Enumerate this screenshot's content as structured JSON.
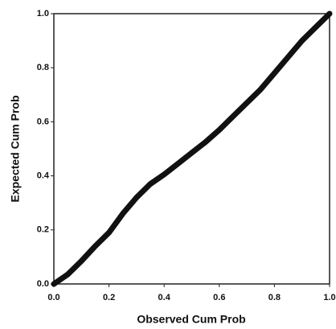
{
  "chart_data": {
    "type": "line",
    "xlabel": "Observed Cum Prob",
    "ylabel": "Expected Cum Prob",
    "x": [
      0,
      0.05,
      0.1,
      0.15,
      0.2,
      0.25,
      0.3,
      0.35,
      0.4,
      0.45,
      0.5,
      0.55,
      0.6,
      0.65,
      0.7,
      0.75,
      0.8,
      0.85,
      0.9,
      0.95,
      1
    ],
    "values": [
      0,
      0.035,
      0.085,
      0.14,
      0.19,
      0.26,
      0.32,
      0.37,
      0.405,
      0.445,
      0.485,
      0.525,
      0.57,
      0.62,
      0.67,
      0.72,
      0.78,
      0.84,
      0.9,
      0.95,
      1
    ],
    "color": "#111111",
    "xlim": [
      0,
      1
    ],
    "ylim": [
      0,
      1
    ],
    "xticks": [
      {
        "value": 0,
        "label": "0.0"
      },
      0.2,
      0.4,
      0.6,
      0.8,
      {
        "value": 1,
        "label": "1.0"
      }
    ],
    "yticks": [
      {
        "value": 0,
        "label": "0.0"
      },
      0.2,
      0.4,
      0.6,
      0.8,
      {
        "value": 1,
        "label": "1.0"
      }
    ],
    "grid": false
  }
}
